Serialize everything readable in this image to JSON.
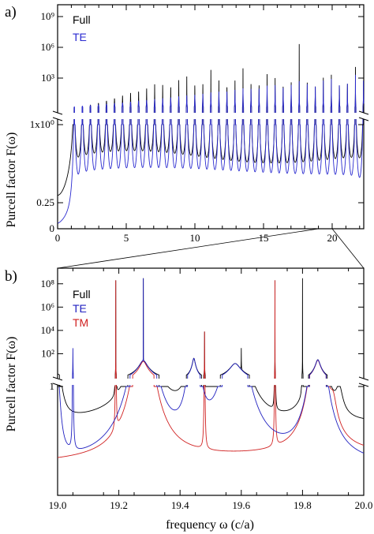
{
  "colors": {
    "full": "#000000",
    "te": "#2020c0",
    "tm": "#d02020",
    "te_panel_a": "#2a2ad0"
  },
  "figure": {
    "shared_ylabel_a": "Purcell factor F(ω)",
    "shared_ylabel_b": "Purcell factor F(ω)",
    "xlabel": "frequency ω (c/a)"
  },
  "chart_data": [
    {
      "type": "line",
      "panel_label": "a)",
      "title": "",
      "xlabel": "",
      "ylabel": "Purcell factor F(ω)",
      "xlim": [
        0,
        22.3
      ],
      "x_ticks": [
        "0",
        "5",
        "10",
        "15",
        "20"
      ],
      "y_broken_axis": true,
      "lower_segment": {
        "scale": "linear",
        "ylim": [
          0,
          1
        ],
        "y_ticks": [
          "0",
          "0.25",
          "1x10⁰"
        ]
      },
      "upper_segment": {
        "scale": "log",
        "ylim": [
          1,
          10000000000.0
        ],
        "y_ticks": [
          "10³",
          "10⁶",
          "10⁹"
        ]
      },
      "legend": [
        "Full",
        "TE"
      ],
      "legend_placement": "top-left",
      "series": [
        {
          "name": "Full",
          "description_points": {
            "x": [
              0.1,
              0.5,
              1.0,
              1.2,
              2.0,
              5.0,
              10.0,
              15.0,
              20.0,
              22.0
            ],
            "baseline_y": [
              0.32,
              0.4,
              0.6,
              0.7,
              0.5,
              0.4,
              0.38,
              0.4,
              0.45,
              0.55
            ],
            "peak_y": [
              null,
              null,
              null,
              3,
              10,
              100,
              100000.0,
              10000000.0,
              1000000000.0,
              1000000000.0
            ]
          }
        },
        {
          "name": "TE",
          "description_points": {
            "x": [
              0.1,
              0.5,
              1.0,
              1.2,
              2.0,
              5.0,
              10.0,
              15.0,
              20.0,
              22.0
            ],
            "baseline_y": [
              0.02,
              0.08,
              0.12,
              0.5,
              0.22,
              0.15,
              0.13,
              0.15,
              0.18,
              0.2
            ],
            "peak_y": [
              null,
              null,
              null,
              2,
              3,
              5,
              20,
              200,
              1000,
              1000
            ]
          }
        }
      ]
    },
    {
      "type": "line",
      "panel_label": "b)",
      "title": "",
      "xlabel": "frequency ω (c/a)",
      "ylabel": "Purcell factor F(ω)",
      "xlim": [
        19.0,
        20.0
      ],
      "x_ticks": [
        "19.0",
        "19.2",
        "19.4",
        "19.6",
        "19.8",
        "20.0"
      ],
      "y_broken_axis": true,
      "lower_segment": {
        "scale": "linear",
        "ylim": [
          0,
          1
        ],
        "y_ticks": [
          "1"
        ]
      },
      "upper_segment": {
        "scale": "log",
        "ylim": [
          1,
          1000000000.0
        ],
        "y_ticks": [
          "10²",
          "10⁴",
          "10⁶",
          "10⁸"
        ]
      },
      "legend": [
        "Full",
        "TE",
        "TM"
      ],
      "legend_placement": "top-left",
      "peaks": {
        "Full": [
          19.19,
          19.28,
          19.48,
          19.71,
          19.8,
          19.6
        ],
        "TE": [
          19.05,
          19.28,
          19.445,
          19.58,
          19.85
        ],
        "TM": [
          19.19,
          19.28,
          19.48,
          19.71,
          19.85
        ]
      }
    }
  ]
}
